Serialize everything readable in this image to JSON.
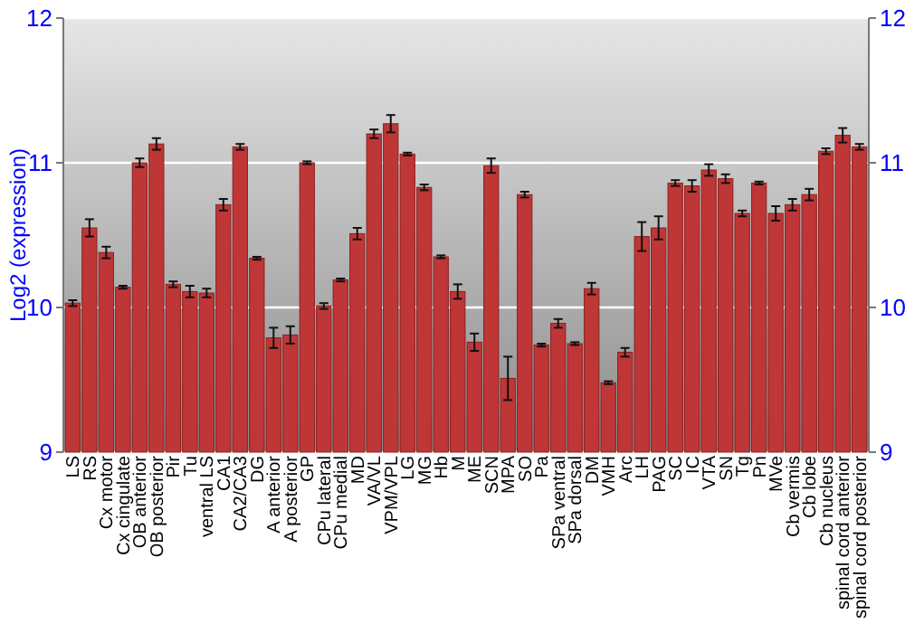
{
  "chart_data": {
    "type": "bar",
    "ylabel": "Log2 (expression)",
    "categories": [
      "LS",
      "RS",
      "Cx motor",
      "Cx cingulate",
      "OB anterior",
      "OB posterior",
      "Pir",
      "Tu",
      "ventral LS",
      "CA1",
      "CA2/CA3",
      "DG",
      "A anterior",
      "A posterior",
      "GP",
      "CPu lateral",
      "CPu medial",
      "MD",
      "VA/VL",
      "VPM/VPL",
      "LG",
      "MG",
      "Hb",
      "M",
      "ME",
      "SCN",
      "MPA",
      "SO",
      "Pa",
      "SPa ventral",
      "SPa dorsal",
      "DM",
      "VMH",
      "Arc",
      "LH",
      "PAG",
      "SC",
      "IC",
      "VTA",
      "SN",
      "Tg",
      "Pn",
      "MVe",
      "Cb vermis",
      "Cb lobe",
      "Cb nucleus",
      "spinal cord anterior",
      "spinal cord posterior"
    ],
    "values": [
      10.03,
      10.55,
      10.38,
      10.14,
      11.0,
      11.13,
      10.16,
      10.11,
      10.1,
      10.71,
      11.11,
      10.34,
      9.79,
      9.81,
      11.0,
      10.01,
      10.19,
      10.51,
      11.2,
      11.27,
      11.06,
      10.83,
      10.35,
      10.11,
      9.76,
      10.98,
      9.51,
      10.78,
      9.74,
      9.89,
      9.75,
      10.13,
      9.48,
      9.69,
      10.49,
      10.55,
      10.86,
      10.84,
      10.95,
      10.89,
      10.65,
      10.86,
      10.65,
      10.71,
      10.78,
      11.08,
      11.19,
      11.11
    ],
    "errors": [
      0.02,
      0.06,
      0.04,
      0.01,
      0.03,
      0.04,
      0.02,
      0.04,
      0.03,
      0.04,
      0.02,
      0.01,
      0.07,
      0.06,
      0.01,
      0.02,
      0.01,
      0.04,
      0.03,
      0.06,
      0.01,
      0.02,
      0.01,
      0.05,
      0.06,
      0.05,
      0.15,
      0.02,
      0.01,
      0.03,
      0.01,
      0.04,
      0.01,
      0.03,
      0.1,
      0.08,
      0.02,
      0.04,
      0.04,
      0.03,
      0.02,
      0.01,
      0.05,
      0.04,
      0.04,
      0.02,
      0.05,
      0.02
    ],
    "color": "#bf3636",
    "ylim": [
      9,
      12
    ],
    "yticks": [
      9,
      10,
      11,
      12
    ],
    "y2lim": [
      9,
      12
    ],
    "y2ticks": [
      9,
      10,
      11,
      12
    ],
    "grid": "y"
  }
}
